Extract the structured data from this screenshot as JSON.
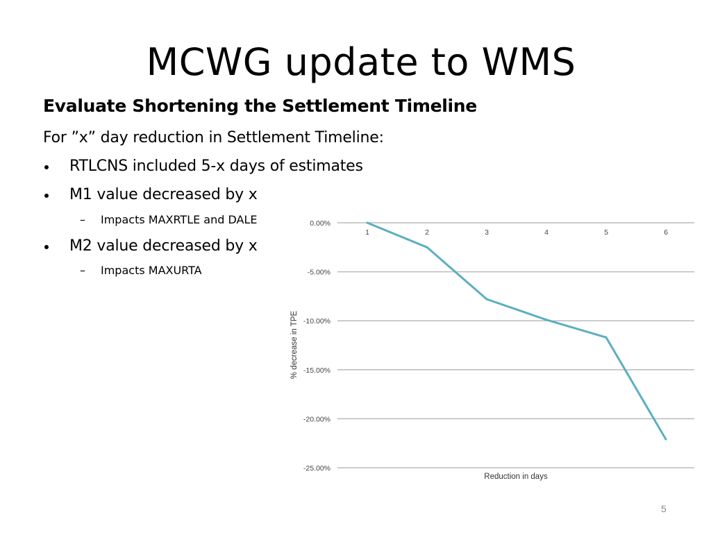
{
  "slide": {
    "title": "MCWG update to WMS",
    "subtitle": "Evaluate Shortening the Settlement Timeline",
    "intro": "For ”x”  day reduction in Settlement Timeline:",
    "bullets": [
      {
        "text": "RTLCNS included 5-x days of estimates"
      },
      {
        "text": "M1 value decreased by x",
        "sub": "Impacts MAXRTLE and DALE"
      },
      {
        "text": "M2 value decreased by x",
        "sub": "Impacts MAXURTA"
      }
    ],
    "page_number": "5"
  },
  "chart_data": {
    "type": "line",
    "title": "",
    "xlabel": "Reduction in days",
    "ylabel": "% decrease in TPE",
    "categories": [
      "1",
      "2",
      "3",
      "4",
      "5",
      "6"
    ],
    "series": [
      {
        "values": [
          0.0,
          -2.5,
          -7.8,
          -9.9,
          -11.7,
          -22.1
        ]
      }
    ],
    "ylim": [
      -25,
      0
    ],
    "yticks": [
      0,
      -5,
      -10,
      -15,
      -20,
      -25
    ],
    "ytick_labels": [
      "0.00%",
      "-5.00%",
      "-10.00%",
      "-15.00%",
      "-20.00%",
      "-25.00%"
    ],
    "x_tick_position": "top",
    "grid": true,
    "line_color": "#5aafbf",
    "grid_color": "#bbbbbb",
    "legend": "none"
  }
}
